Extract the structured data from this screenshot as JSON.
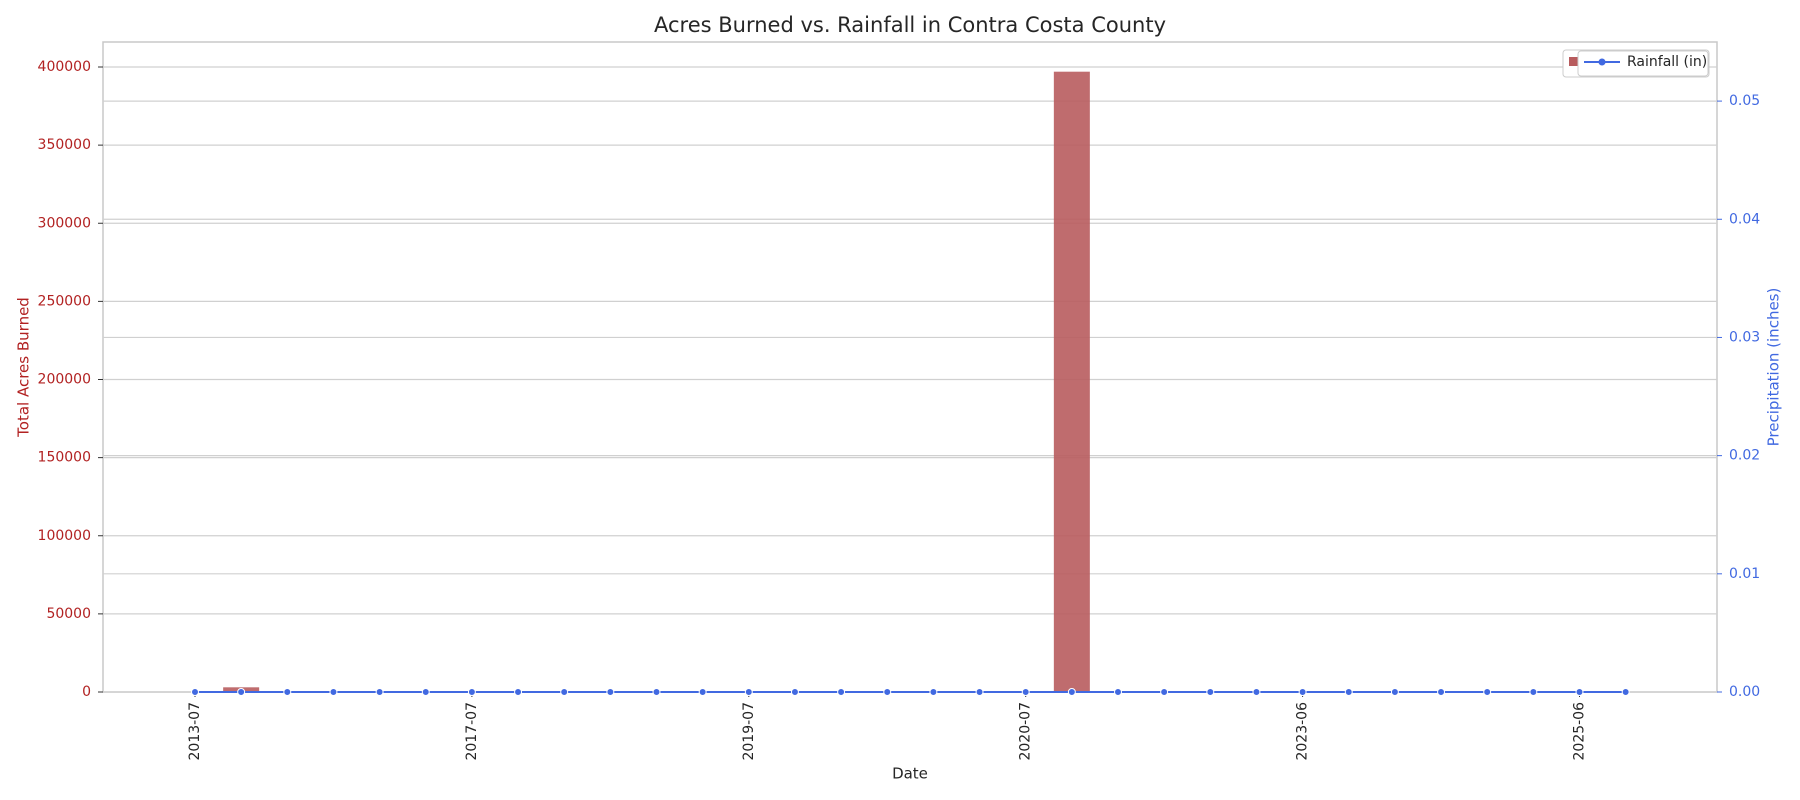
{
  "chart_data": {
    "type": "bar",
    "title": "Acres Burned vs. Rainfall in Contra Costa County",
    "x_label": "Date",
    "y_label": "Total Acres Burned",
    "y2_label": "Precipitation (inches)",
    "categories": [
      "2013-07",
      null,
      null,
      null,
      null,
      null,
      "2017-07",
      null,
      null,
      null,
      null,
      null,
      "2019-07",
      null,
      null,
      null,
      null,
      null,
      "2020-07",
      null,
      null,
      null,
      null,
      null,
      "2023-06",
      null,
      null,
      null,
      null,
      null,
      "2025-06",
      null
    ],
    "series": [
      {
        "type": "bar",
        "color": "#b85c5e",
        "values": [
          0,
          3000,
          0,
          0,
          0,
          0,
          0,
          0,
          0,
          0,
          0,
          0,
          0,
          0,
          0,
          0,
          0,
          0,
          0,
          397000,
          0,
          0,
          0,
          0,
          0,
          0,
          0,
          0,
          0,
          0,
          0,
          0
        ]
      },
      {
        "type": "line",
        "name": "Rainfall (in)",
        "color": "#4169e1",
        "axis": "y2",
        "values": [
          0,
          0,
          0,
          0,
          0,
          0,
          0,
          0,
          0,
          0,
          0,
          0,
          0,
          0,
          0,
          0,
          0,
          0,
          0,
          0,
          0,
          0,
          0,
          0,
          0,
          0,
          0,
          0,
          0,
          0,
          0,
          0
        ]
      }
    ],
    "ylim": [
      0,
      416000
    ],
    "yticks": [
      0,
      50000,
      100000,
      150000,
      200000,
      250000,
      300000,
      350000,
      400000
    ],
    "y2lim": [
      0,
      0.055
    ],
    "y2ticks": [
      {
        "value": 0,
        "label": "0.00"
      },
      {
        "value": 0.01,
        "label": "0.01"
      },
      {
        "value": 0.02,
        "label": "0.02"
      },
      {
        "value": 0.03,
        "label": "0.03"
      },
      {
        "value": 0.04,
        "label": "0.04"
      },
      {
        "value": 0.05,
        "label": "0.05"
      }
    ],
    "y_color": "#b22222",
    "grid": true,
    "legend": "upper right"
  }
}
